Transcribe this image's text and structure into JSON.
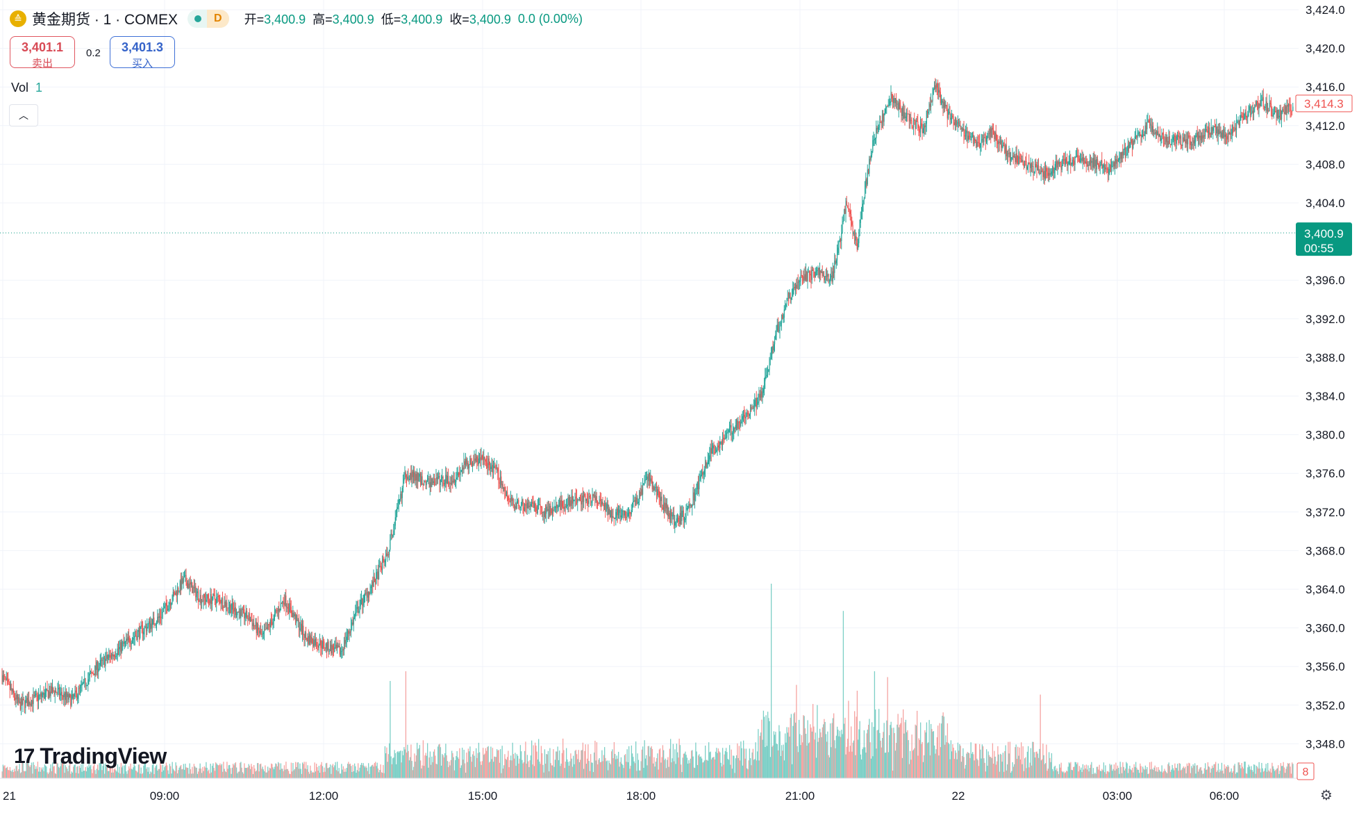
{
  "header": {
    "logo_icon": "gold-coin-icon",
    "logo_glyph": "≙",
    "symbol_title": "黄金期货 · 1 · COMEX",
    "delay_badge": "D",
    "open_label": "开=",
    "open": "3,400.9",
    "high_label": "高=",
    "high": "3,400.9",
    "low_label": "低=",
    "low": "3,400.9",
    "close_label": "收=",
    "close": "3,400.9",
    "change": "0.0 (0.00%)"
  },
  "trade": {
    "sell_price": "3,401.1",
    "sell_label": "卖出",
    "spread": "0.2",
    "buy_price": "3,401.3",
    "buy_label": "买入"
  },
  "volume": {
    "label": "Vol",
    "value": "1",
    "axis_badge": "8"
  },
  "brand": "TradingView",
  "colors": {
    "up": "#26a69a",
    "down": "#ef5350",
    "up_vol": "#7ccfc6",
    "down_vol": "#f5a3a1",
    "last_price_bg": "#089981",
    "prev_price_border": "#ef5350"
  },
  "chart_data": {
    "type": "candlestick",
    "timeframe": "1 minute",
    "y_ticks": [
      "3,424.0",
      "3,420.0",
      "3,416.0",
      "3,412.0",
      "3,408.0",
      "3,404.0",
      "3,396.0",
      "3,392.0",
      "3,388.0",
      "3,384.0",
      "3,380.0",
      "3,376.0",
      "3,372.0",
      "3,368.0",
      "3,364.0",
      "3,360.0",
      "3,356.0",
      "3,352.0",
      "3,348.0"
    ],
    "ylim": [
      3345.0,
      3424.0
    ],
    "x_ticks": [
      "21",
      "09:00",
      "12:00",
      "15:00",
      "18:00",
      "21:00",
      "22",
      "03:00",
      "06:00"
    ],
    "last_price": {
      "value": "3,400.9",
      "countdown": "00:55"
    },
    "marked_price": "3,414.3",
    "price_path": [
      [
        0,
        3355
      ],
      [
        20,
        3352
      ],
      [
        60,
        3353.5
      ],
      [
        80,
        3352.5
      ],
      [
        110,
        3356
      ],
      [
        150,
        3359
      ],
      [
        180,
        3361
      ],
      [
        195,
        3363
      ],
      [
        210,
        3365
      ],
      [
        230,
        3363
      ],
      [
        250,
        3363
      ],
      [
        265,
        3362
      ],
      [
        285,
        3361
      ],
      [
        300,
        3359
      ],
      [
        325,
        3363
      ],
      [
        350,
        3359
      ],
      [
        375,
        3358
      ],
      [
        390,
        3357.5
      ],
      [
        410,
        3362
      ],
      [
        430,
        3365
      ],
      [
        445,
        3368
      ],
      [
        465,
        3376
      ],
      [
        490,
        3375
      ],
      [
        520,
        3375.5
      ],
      [
        535,
        3377
      ],
      [
        555,
        3377.5
      ],
      [
        570,
        3376
      ],
      [
        585,
        3373
      ],
      [
        610,
        3372.5
      ],
      [
        625,
        3372
      ],
      [
        650,
        3373
      ],
      [
        680,
        3373.5
      ],
      [
        700,
        3372
      ],
      [
        720,
        3371.5
      ],
      [
        745,
        3375.5
      ],
      [
        760,
        3373
      ],
      [
        775,
        3371
      ],
      [
        790,
        3372
      ],
      [
        815,
        3378
      ],
      [
        835,
        3380
      ],
      [
        855,
        3382
      ],
      [
        875,
        3384
      ],
      [
        890,
        3390
      ],
      [
        905,
        3394
      ],
      [
        920,
        3396
      ],
      [
        940,
        3397
      ],
      [
        955,
        3396
      ],
      [
        965,
        3400
      ],
      [
        972,
        3404
      ],
      [
        985,
        3399.5
      ],
      [
        995,
        3406
      ],
      [
        1005,
        3411
      ],
      [
        1015,
        3413
      ],
      [
        1025,
        3415
      ],
      [
        1040,
        3413
      ],
      [
        1060,
        3411.5
      ],
      [
        1075,
        3416
      ],
      [
        1090,
        3413
      ],
      [
        1110,
        3411
      ],
      [
        1125,
        3410
      ],
      [
        1140,
        3411.5
      ],
      [
        1160,
        3409
      ],
      [
        1180,
        3408
      ],
      [
        1200,
        3407
      ],
      [
        1220,
        3408
      ],
      [
        1240,
        3408.5
      ],
      [
        1260,
        3408
      ],
      [
        1275,
        3407.5
      ],
      [
        1300,
        3410
      ],
      [
        1320,
        3412
      ],
      [
        1340,
        3410.5
      ],
      [
        1370,
        3410.5
      ],
      [
        1395,
        3411.5
      ],
      [
        1410,
        3411
      ],
      [
        1430,
        3413
      ],
      [
        1450,
        3414.5
      ],
      [
        1470,
        3413
      ],
      [
        1490,
        3414.2
      ]
    ],
    "volume_spikes": [
      [
        447,
        0.5
      ],
      [
        465,
        0.55
      ],
      [
        886,
        1.0
      ],
      [
        969,
        0.86
      ],
      [
        1005,
        0.55
      ],
      [
        1020,
        0.52
      ],
      [
        1196,
        0.43
      ],
      [
        915,
        0.48
      ],
      [
        985,
        0.45
      ]
    ]
  }
}
